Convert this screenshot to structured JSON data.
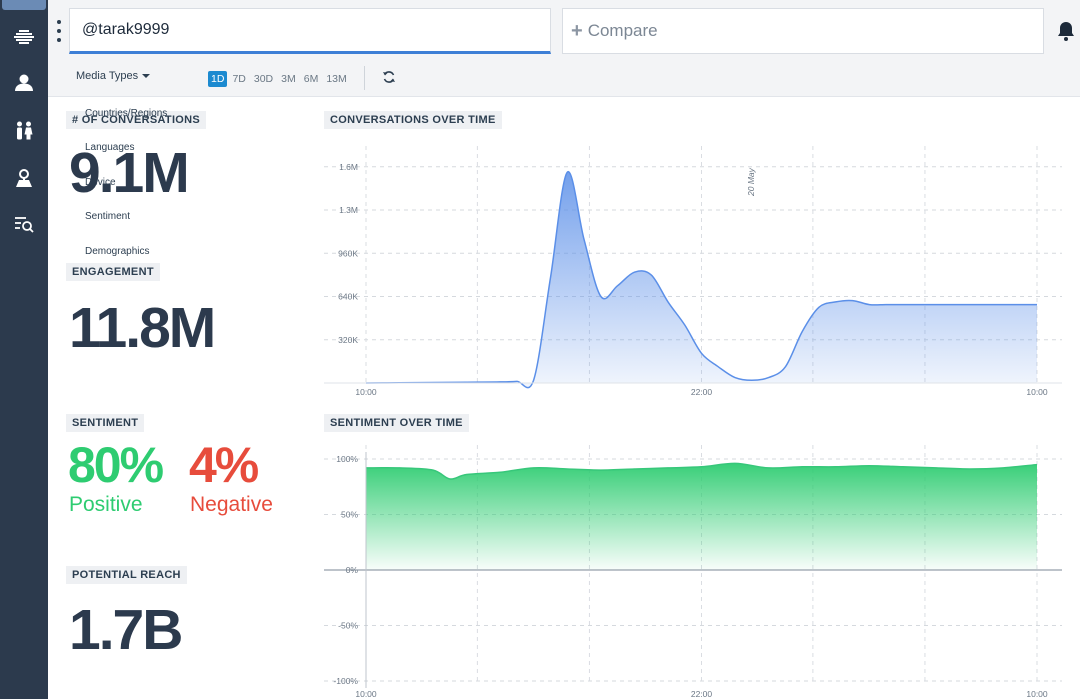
{
  "search": {
    "value": "@tarak9999"
  },
  "compare": {
    "placeholder": "Compare"
  },
  "filters": {
    "media_types": "Media Types",
    "ranges": [
      "1D",
      "7D",
      "30D",
      "3M",
      "6M",
      "13M"
    ],
    "active_range": "1D"
  },
  "dropdown_menu": [
    "Countries/Regions",
    "Languages",
    "Device",
    "Sentiment",
    "Demographics"
  ],
  "metrics": {
    "conversations": {
      "label": "# OF CONVERSATIONS",
      "value": "9.1M"
    },
    "engagement": {
      "label": "ENGAGEMENT",
      "value": "11.8M"
    },
    "sentiment": {
      "label": "SENTIMENT",
      "positive_value": "80%",
      "positive_label": "Positive",
      "negative_value": "4%",
      "negative_label": "Negative"
    },
    "reach": {
      "label": "POTENTIAL REACH",
      "value": "1.7B"
    }
  },
  "colors": {
    "sidebar": "#2c3a4d",
    "accent": "#1c8ad0",
    "positive": "#2ecc71",
    "negative": "#e74c3c",
    "area_blue": "#5b8fe8"
  },
  "icons": [
    "logo-icon",
    "user-icon",
    "people-icon",
    "location-icon",
    "search-list-icon",
    "bell-icon",
    "refresh-icon"
  ],
  "chart_data": [
    {
      "type": "area",
      "title": "CONVERSATIONS OVER TIME",
      "annotation": "20 May",
      "x_ticks": [
        "10:00",
        "22:00",
        "10:00"
      ],
      "y_ticks": [
        "320K",
        "640K",
        "960K",
        "1.3M",
        "1.6M"
      ],
      "y_tick_values": [
        320000,
        640000,
        960000,
        1280000,
        1600000
      ],
      "ylim": [
        0,
        1650000
      ],
      "x": [
        0,
        2,
        4,
        6,
        8,
        9,
        10,
        11,
        12,
        13,
        14,
        15,
        16,
        17,
        18,
        19,
        20,
        21,
        22,
        23,
        24,
        25,
        26,
        27,
        28,
        29,
        30,
        31,
        32,
        33,
        34,
        35,
        36,
        37,
        38,
        39,
        40
      ],
      "values": [
        0,
        2000,
        4000,
        6000,
        8000,
        12000,
        25000,
        780000,
        1560000,
        1060000,
        640000,
        720000,
        820000,
        800000,
        600000,
        430000,
        220000,
        120000,
        40000,
        20000,
        40000,
        120000,
        380000,
        560000,
        600000,
        610000,
        580000,
        580000,
        580000,
        580000,
        580000,
        580000,
        580000,
        580000,
        580000,
        580000,
        580000
      ],
      "grid": true
    },
    {
      "type": "area",
      "title": "SENTIMENT OVER TIME",
      "x_ticks": [
        "10:00",
        "22:00",
        "10:00"
      ],
      "y_ticks": [
        "100%",
        "50%",
        "0%",
        "-50%",
        "-100%"
      ],
      "y_tick_values": [
        100,
        50,
        0,
        -50,
        -100
      ],
      "ylim": [
        -100,
        100
      ],
      "x": [
        0,
        2,
        4,
        5,
        6,
        8,
        10,
        12,
        14,
        16,
        18,
        20,
        22,
        24,
        26,
        28,
        30,
        32,
        34,
        36,
        38,
        40
      ],
      "values": [
        92,
        92,
        90,
        82,
        86,
        88,
        92,
        91,
        90,
        91,
        92,
        93,
        96,
        92,
        93,
        93,
        94,
        93,
        92,
        91,
        92,
        95
      ],
      "grid": true
    }
  ]
}
